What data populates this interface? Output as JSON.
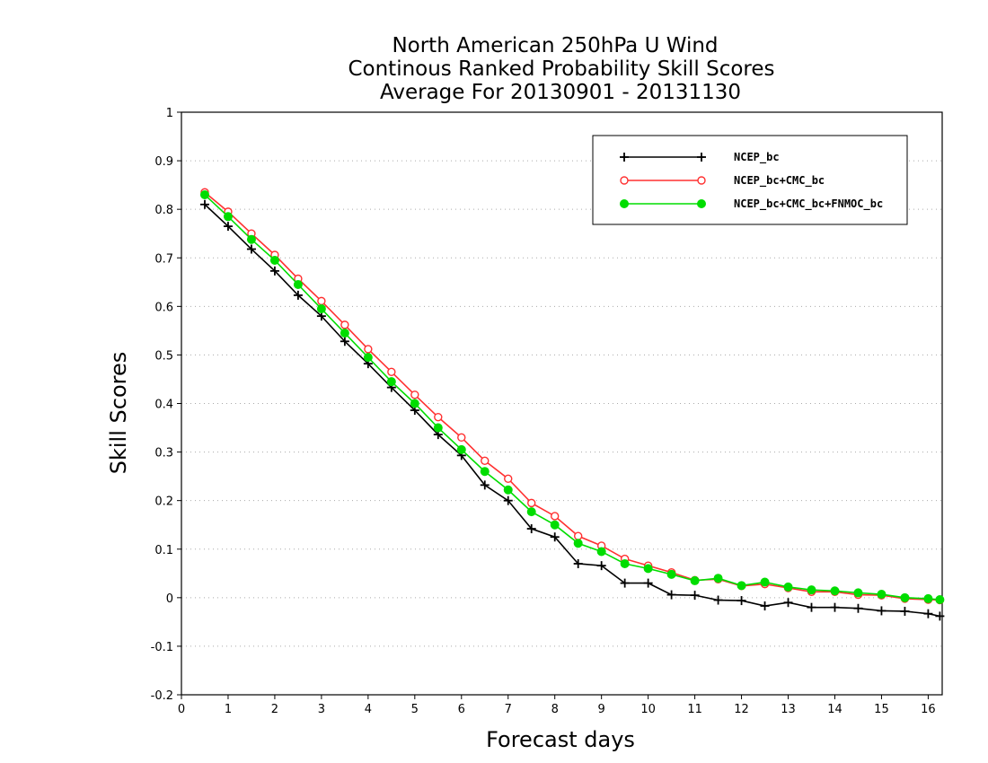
{
  "chart_data": {
    "type": "line",
    "title": [
      "North American 250hPa U Wind",
      "Continous Ranked Probability Skill Scores",
      "Average For 20130901 - 20131130"
    ],
    "xlabel": "Forecast days",
    "ylabel": "Skill Scores",
    "xlim": [
      0,
      16.3
    ],
    "ylim": [
      -0.2,
      1
    ],
    "xticks": [
      0,
      1,
      2,
      3,
      4,
      5,
      6,
      7,
      8,
      9,
      10,
      11,
      12,
      13,
      14,
      15,
      16
    ],
    "yticks": [
      -0.2,
      -0.1,
      0,
      0.1,
      0.2,
      0.3,
      0.4,
      0.5,
      0.6,
      0.7,
      0.8,
      0.9,
      1
    ],
    "ytick_labels": [
      "-0.2",
      "-0.1",
      "0",
      "0.1",
      "0.2",
      "0.3",
      "0.4",
      "0.5",
      "0.6",
      "0.7",
      "0.8",
      "0.9",
      "1"
    ],
    "grid": "horizontal dotted",
    "legend_position": "top-right",
    "x": [
      0.5,
      1,
      1.5,
      2,
      2.5,
      3,
      3.5,
      4,
      4.5,
      5,
      5.5,
      6,
      6.5,
      7,
      7.5,
      8,
      8.5,
      9,
      9.5,
      10,
      10.5,
      11,
      11.5,
      12,
      12.5,
      13,
      13.5,
      14,
      14.5,
      15,
      15.5,
      16,
      16.25
    ],
    "series": [
      {
        "name": "NCEP_bc",
        "color": "#000000",
        "marker": "plus",
        "values": [
          0.81,
          0.765,
          0.718,
          0.673,
          0.623,
          0.58,
          0.528,
          0.482,
          0.433,
          0.386,
          0.336,
          0.293,
          0.232,
          0.2,
          0.142,
          0.125,
          0.07,
          0.066,
          0.03,
          0.03,
          0.006,
          0.005,
          -0.005,
          -0.006,
          -0.017,
          -0.01,
          -0.02,
          -0.02,
          -0.022,
          -0.027,
          -0.028,
          -0.033,
          -0.038
        ]
      },
      {
        "name": "NCEP_bc+CMC_bc",
        "color": "#ff3030",
        "marker": "open-circle",
        "values": [
          0.835,
          0.795,
          0.75,
          0.706,
          0.657,
          0.611,
          0.562,
          0.512,
          0.465,
          0.418,
          0.372,
          0.33,
          0.282,
          0.245,
          0.195,
          0.168,
          0.127,
          0.107,
          0.08,
          0.066,
          0.052,
          0.036,
          0.038,
          0.024,
          0.028,
          0.02,
          0.012,
          0.012,
          0.006,
          0.005,
          -0.002,
          -0.004,
          -0.005
        ]
      },
      {
        "name": "NCEP_bc+CMC_bc+FNMOC_bc",
        "color": "#00dd00",
        "marker": "filled-circle",
        "values": [
          0.83,
          0.785,
          0.738,
          0.695,
          0.645,
          0.595,
          0.545,
          0.495,
          0.445,
          0.4,
          0.35,
          0.305,
          0.26,
          0.222,
          0.177,
          0.15,
          0.112,
          0.095,
          0.07,
          0.06,
          0.048,
          0.035,
          0.04,
          0.025,
          0.032,
          0.022,
          0.016,
          0.014,
          0.01,
          0.007,
          0.0,
          -0.002,
          -0.004
        ]
      }
    ]
  }
}
